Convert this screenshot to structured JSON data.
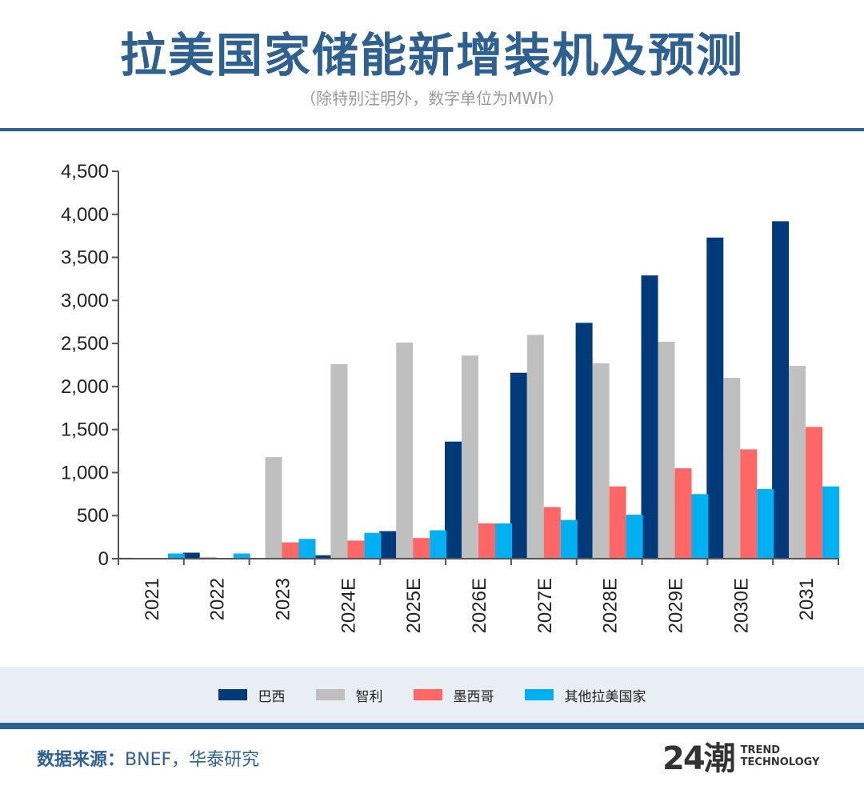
{
  "header": {
    "title": "拉美国家储能新增装机及预测",
    "subtitle": "（除特别注明外，数字单位为MWh）"
  },
  "footer": {
    "source_label": "数据来源：",
    "source_text": "BNEF，华泰研究",
    "brand_mark": "24潮",
    "brand_line1": "TREND",
    "brand_line2": "TECHNOLOGY"
  },
  "colors": {
    "brand_blue": "#2e6090",
    "legend_band": "#e9eef5"
  },
  "chart_data": {
    "type": "bar",
    "title": "拉美国家储能新增装机及预测",
    "subtitle": "（除特别注明外，数字单位为MWh）",
    "xlabel": "",
    "ylabel": "MWh",
    "ylim": [
      0,
      4500
    ],
    "yticks": [
      0,
      500,
      1000,
      1500,
      2000,
      2500,
      3000,
      3500,
      4000,
      4500
    ],
    "ytick_labels": [
      "0",
      "500",
      "1,000",
      "1,500",
      "2,000",
      "2,500",
      "3,000",
      "3,500",
      "4,000",
      "4,500"
    ],
    "grid": false,
    "legend_position": "bottom",
    "categories": [
      "2021",
      "2022",
      "2023",
      "2024E",
      "2025E",
      "2026E",
      "2027E",
      "2028E",
      "2029E",
      "2030E",
      "2031"
    ],
    "series": [
      {
        "name": "巴西",
        "color": "#003a7a",
        "values": [
          10,
          70,
          0,
          40,
          320,
          1360,
          2160,
          2740,
          3290,
          3730,
          3920
        ]
      },
      {
        "name": "智利",
        "color": "#bfbfbf",
        "values": [
          0,
          20,
          1180,
          2260,
          2510,
          2360,
          2600,
          2270,
          2520,
          2100,
          2240
        ]
      },
      {
        "name": "墨西哥",
        "color": "#ff6666",
        "values": [
          0,
          0,
          190,
          210,
          240,
          410,
          600,
          840,
          1050,
          1270,
          1530
        ]
      },
      {
        "name": "其他拉美国家",
        "color": "#00b0f0",
        "values": [
          60,
          60,
          230,
          300,
          330,
          410,
          450,
          510,
          750,
          810,
          840
        ]
      }
    ]
  }
}
